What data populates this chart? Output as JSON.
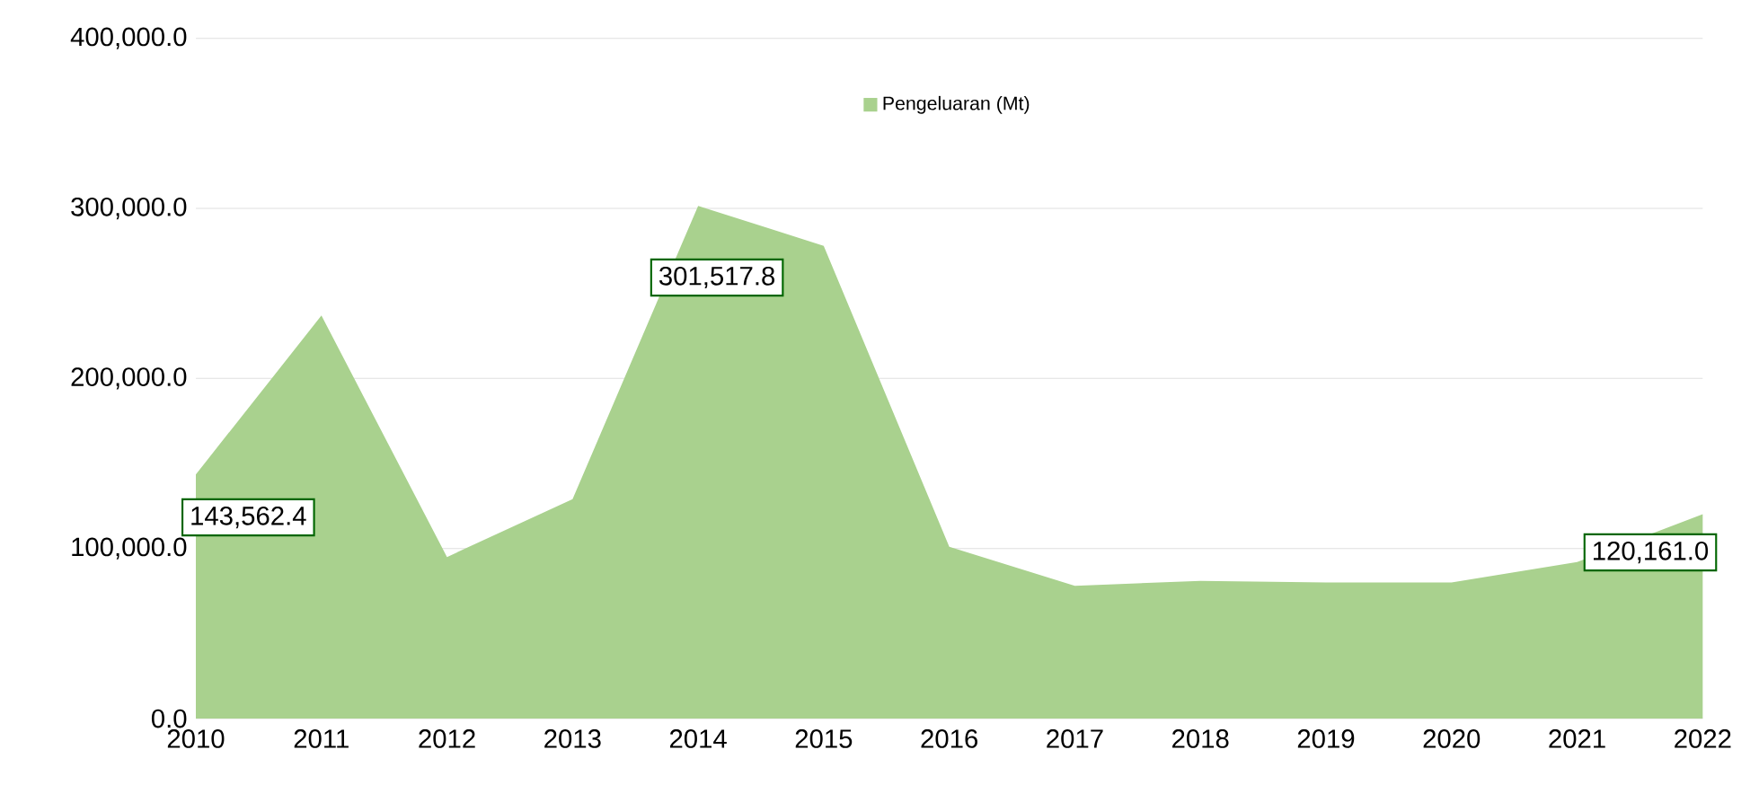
{
  "chart_data": {
    "type": "area",
    "categories": [
      "2010",
      "2011",
      "2012",
      "2013",
      "2014",
      "2015",
      "2016",
      "2017",
      "2018",
      "2019",
      "2020",
      "2021",
      "2022"
    ],
    "series": [
      {
        "name": "Pengeluaran (Mt)",
        "color": "#a9d18e",
        "values": [
          143562.4,
          237000,
          95000,
          129000,
          301517.8,
          278000,
          101000,
          78000,
          81000,
          80000,
          80000,
          92000,
          120161.0
        ],
        "value_labels": [
          "143,562.4",
          null,
          null,
          null,
          "301,517.8",
          null,
          null,
          null,
          null,
          null,
          null,
          null,
          "120,161.0"
        ]
      }
    ],
    "ylim": [
      0,
      400000
    ],
    "yticks": [
      {
        "value": 0,
        "label": "0.0"
      },
      {
        "value": 100000,
        "label": "100,000.0"
      },
      {
        "value": 200000,
        "label": "200,000.0"
      },
      {
        "value": 300000,
        "label": "300,000.0"
      },
      {
        "value": 400000,
        "label": "400,000.0"
      }
    ],
    "grid": "y",
    "legend": "top"
  }
}
